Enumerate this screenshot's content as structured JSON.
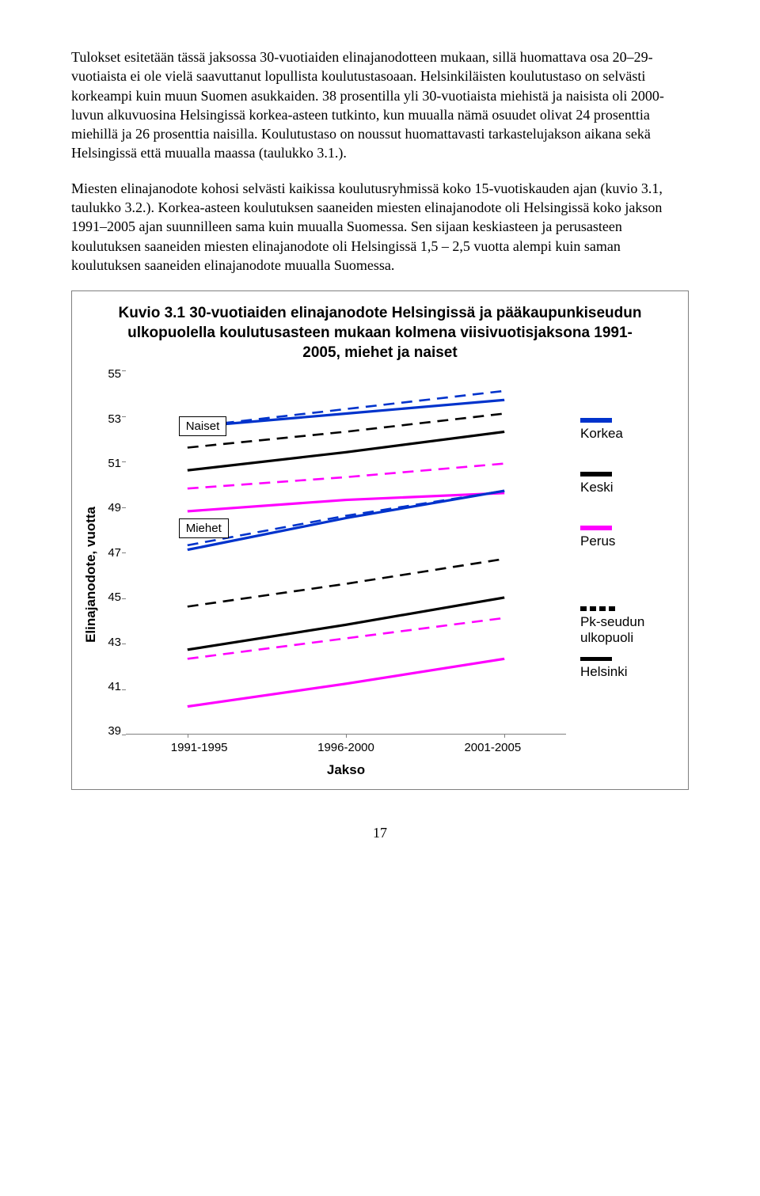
{
  "paragraphs": {
    "p1": "Tulokset esitetään tässä jaksossa 30-vuotiaiden elinajanodotteen mukaan, sillä huomattava osa 20–29-vuotiaista ei ole vielä saavuttanut lopullista koulutustasoaan. Helsinkiläisten koulutustaso on selvästi korkeampi kuin muun Suomen asukkaiden. 38 prosentilla yli 30-vuotiaista miehistä ja naisista oli 2000-luvun alkuvuosina Helsingissä korkea-asteen tutkinto, kun muualla nämä osuudet olivat 24 prosenttia miehillä ja 26 prosenttia naisilla. Koulutustaso on noussut huomattavasti tarkastelujakson aikana sekä Helsingissä että muualla maassa (taulukko 3.1.).",
    "p2": "Miesten elinajanodote kohosi selvästi kaikissa koulutusryhmissä koko 15-vuotiskauden ajan (kuvio 3.1, taulukko 3.2.). Korkea-asteen koulutuksen saaneiden miesten elinajanodote oli Helsingissä koko jakson 1991–2005 ajan suunnilleen sama kuin muualla Suomessa. Sen sijaan keskiasteen ja perusasteen koulutuksen saaneiden miesten elinajanodote oli Helsingissä 1,5 – 2,5 vuotta alempi kuin saman koulutuksen saaneiden elinajanodote muualla Suomessa."
  },
  "chart": {
    "type": "line",
    "title": "Kuvio 3.1 30-vuotiaiden elinajanodote Helsingissä ja pääkaupunkiseudun ulkopuolella koulutusasteen mukaan kolmena viisivuotisjaksona 1991- 2005, miehet ja naiset",
    "y_axis_label": "Elinajanodote, vuotta",
    "x_axis_label": "Jakso",
    "y_min": 39,
    "y_max": 55,
    "y_tick_step": 2,
    "y_ticks": [
      "55",
      "53",
      "51",
      "49",
      "47",
      "45",
      "43",
      "41",
      "39"
    ],
    "x_categories": [
      "1991-1995",
      "1996-2000",
      "2001-2005"
    ],
    "annotations": {
      "naiset": "Naiset",
      "miehet": "Miehet"
    },
    "legend": {
      "korkea": "Korkea",
      "keski": "Keski",
      "perus": "Perus",
      "pk_ulko": "Pk-seudun ulkopuoli",
      "helsinki": "Helsinki"
    },
    "colors": {
      "korkea": "#0033cc",
      "keski": "#000000",
      "perus": "#ff00ff",
      "anno_border": "#000000",
      "axis": "#808080",
      "bg": "#ffffff"
    },
    "line_width_solid": 3.2,
    "line_width_dashed": 2.6,
    "dash_pattern": "11,7",
    "series": [
      {
        "name": "naiset-korkea-hki",
        "color": "#0033cc",
        "dashed": false,
        "values": [
          52.5,
          53.1,
          53.7
        ]
      },
      {
        "name": "naiset-korkea-ulko",
        "color": "#0033cc",
        "dashed": true,
        "values": [
          52.5,
          53.3,
          54.1
        ]
      },
      {
        "name": "naiset-keski-hki",
        "color": "#000000",
        "dashed": false,
        "values": [
          50.6,
          51.4,
          52.3
        ]
      },
      {
        "name": "naiset-keski-ulko",
        "color": "#000000",
        "dashed": true,
        "values": [
          51.6,
          52.3,
          53.1
        ]
      },
      {
        "name": "naiset-perus-hki",
        "color": "#ff00ff",
        "dashed": false,
        "values": [
          48.8,
          49.3,
          49.6
        ]
      },
      {
        "name": "naiset-perus-ulko",
        "color": "#ff00ff",
        "dashed": true,
        "values": [
          49.8,
          50.3,
          50.9
        ]
      },
      {
        "name": "miehet-korkea-hki",
        "color": "#0033cc",
        "dashed": false,
        "values": [
          47.1,
          48.5,
          49.7
        ]
      },
      {
        "name": "miehet-korkea-ulko",
        "color": "#0033cc",
        "dashed": true,
        "values": [
          47.3,
          48.6,
          49.7
        ]
      },
      {
        "name": "miehet-keski-hki",
        "color": "#000000",
        "dashed": false,
        "values": [
          42.7,
          43.8,
          45.0
        ]
      },
      {
        "name": "miehet-keski-ulko",
        "color": "#000000",
        "dashed": true,
        "values": [
          44.6,
          45.6,
          46.7
        ]
      },
      {
        "name": "miehet-perus-hki",
        "color": "#ff00ff",
        "dashed": false,
        "values": [
          40.2,
          41.2,
          42.3
        ]
      },
      {
        "name": "miehet-perus-ulko",
        "color": "#ff00ff",
        "dashed": true,
        "values": [
          42.3,
          43.2,
          44.1
        ]
      }
    ],
    "plot_padding_x": 0.14
  },
  "page_number": "17"
}
